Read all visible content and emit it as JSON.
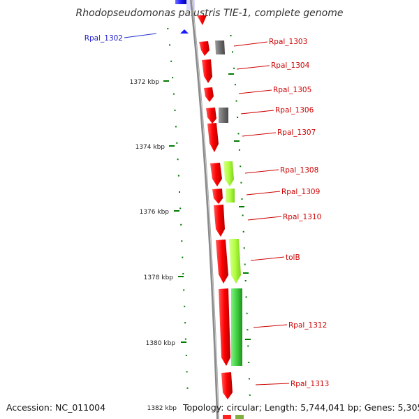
{
  "title": "Rhodopseudomonas palustris TIE-1, complete genome",
  "accession": "Accession: NC_011004",
  "topology": "Topology: circular; Length: 5,744,041 bp; Genes: 5,305",
  "colors": {
    "forward_gene": "#ff0000",
    "reverse_gene": "#1a1aff",
    "other_gene": "#6e6e6e",
    "cds_light": "#b0ff40",
    "cds_green": "#40d040",
    "tick": "#007a00",
    "backbone": "#8a8a8a",
    "label_line": "#cc0000"
  },
  "ruler": {
    "ticks": [
      {
        "label": "1372 kbp"
      },
      {
        "label": "1374 kbp"
      },
      {
        "label": "1376 kbp"
      },
      {
        "label": "1378 kbp"
      },
      {
        "label": "1380 kbp"
      },
      {
        "label": "1382 kbp"
      }
    ]
  },
  "genes": [
    {
      "label": "Rpal_1302",
      "strand": "reverse"
    },
    {
      "label": "Rpal_1303",
      "strand": "forward"
    },
    {
      "label": "Rpal_1304",
      "strand": "forward"
    },
    {
      "label": "Rpal_1305",
      "strand": "forward"
    },
    {
      "label": "Rpal_1306",
      "strand": "forward"
    },
    {
      "label": "Rpal_1307",
      "strand": "forward"
    },
    {
      "label": "Rpal_1308",
      "strand": "forward"
    },
    {
      "label": "Rpal_1309",
      "strand": "forward"
    },
    {
      "label": "Rpal_1310",
      "strand": "forward"
    },
    {
      "label": "tolB",
      "strand": "forward"
    },
    {
      "label": "Rpal_1312",
      "strand": "forward"
    },
    {
      "label": "Rpal_1313",
      "strand": "forward"
    }
  ]
}
